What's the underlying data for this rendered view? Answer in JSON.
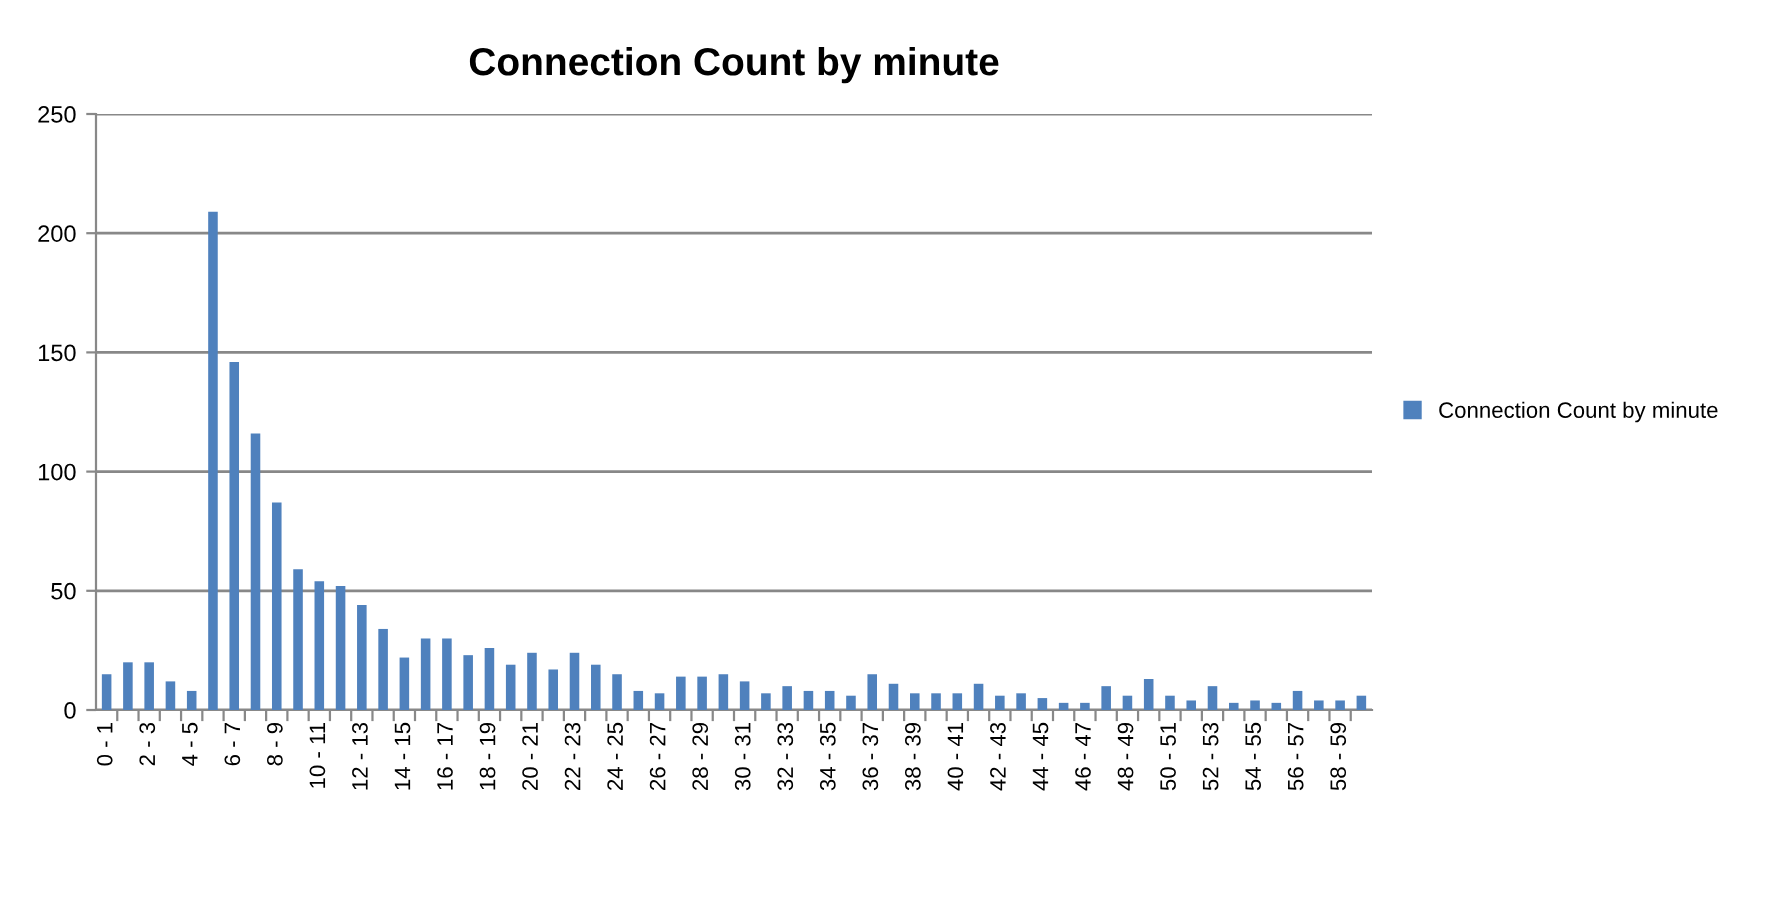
{
  "chart_data": {
    "type": "bar",
    "title": "Connection Count by minute",
    "categories": [
      "0 - 1",
      null,
      "2 - 3",
      null,
      "4 - 5",
      null,
      "6 - 7",
      null,
      "8 - 9",
      null,
      "10 - 11",
      null,
      "12 - 13",
      null,
      "14 - 15",
      null,
      "16 - 17",
      null,
      "18 - 19",
      null,
      "20 - 21",
      null,
      "22 - 23",
      null,
      "24 - 25",
      null,
      "26 - 27",
      null,
      "28 - 29",
      null,
      "30 - 31",
      null,
      "32 - 33",
      null,
      "34 - 35",
      null,
      "36 - 37",
      null,
      "38 - 39",
      null,
      "40 - 41",
      null,
      "42 - 43",
      null,
      "44 - 45",
      null,
      "46 - 47",
      null,
      "48 - 49",
      null,
      "50 - 51",
      null,
      "52 - 53",
      null,
      "54 - 55",
      null,
      "56 - 57",
      null,
      "58 - 59",
      null
    ],
    "series": [
      {
        "name": "Connection Count by minute",
        "color": "#4f81bd",
        "values": [
          15,
          20,
          20,
          12,
          8,
          209,
          146,
          116,
          87,
          59,
          54,
          52,
          44,
          34,
          22,
          30,
          30,
          23,
          26,
          19,
          24,
          17,
          24,
          19,
          15,
          8,
          7,
          14,
          14,
          15,
          12,
          7,
          10,
          8,
          8,
          6,
          15,
          11,
          7,
          7,
          7,
          11,
          6,
          7,
          5,
          3,
          3,
          10,
          6,
          13,
          6,
          4,
          10,
          3,
          4,
          3,
          8,
          4,
          4,
          6
        ]
      }
    ],
    "ylim": [
      0,
      250
    ],
    "yticks": [
      0,
      50,
      100,
      150,
      200,
      250
    ],
    "grid": "y",
    "legend": "right"
  }
}
